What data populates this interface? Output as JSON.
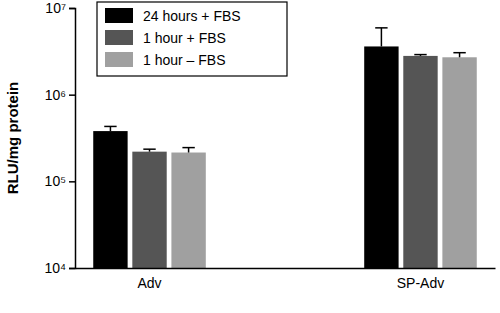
{
  "chart_data": {
    "type": "bar",
    "y_label": "RLU/mg protein",
    "categories": [
      "Adv",
      "SP-Adv"
    ],
    "series": [
      {
        "name": "24 hours + FBS",
        "color": "#000000",
        "values": [
          380000,
          3600000
        ],
        "errors": [
          50000,
          2300000
        ]
      },
      {
        "name": "1 hour + FBS",
        "color": "#555555",
        "values": [
          220000,
          2800000
        ],
        "errors": [
          15000,
          100000
        ]
      },
      {
        "name": "1 hour – FBS",
        "color": "#a0a0a0",
        "values": [
          215000,
          2700000
        ],
        "errors": [
          30000,
          350000
        ]
      }
    ],
    "log": "y",
    "ylim": [
      10000,
      10000000
    ],
    "yticks": [
      {
        "value": 10000,
        "label": "10⁴"
      },
      {
        "value": 100000,
        "label": "10⁵"
      },
      {
        "value": 1000000,
        "label": "10⁶"
      },
      {
        "value": 10000000,
        "label": "10⁷"
      }
    ],
    "grid": false,
    "legend": "upper left"
  }
}
